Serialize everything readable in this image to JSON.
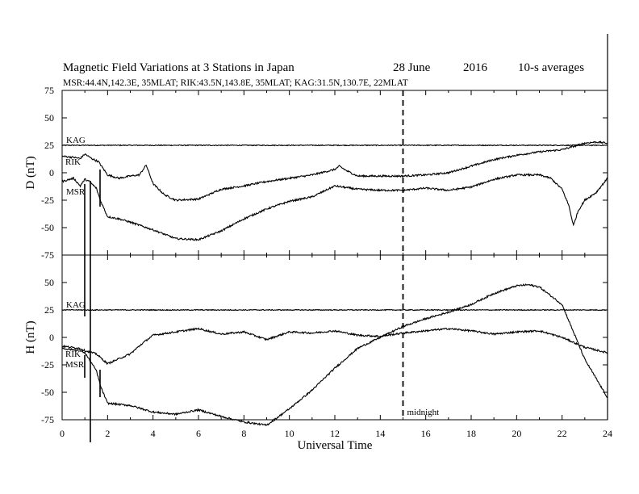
{
  "chart_data": {
    "type": "line",
    "title": {
      "main": "Magnetic Field Variations at 3 Stations in Japan",
      "date": "28 June",
      "year": "2016",
      "avg": "10-s averages"
    },
    "subtitle": "MSR:44.4N,142.3E, 35MLAT;  RIK:43.5N,143.8E, 35MLAT;  KAG:31.5N,130.7E, 22MLAT",
    "xlabel": "Universal Time",
    "xlim": [
      0,
      24
    ],
    "xticks": [
      0,
      2,
      4,
      6,
      8,
      10,
      12,
      14,
      16,
      18,
      20,
      22,
      24
    ],
    "midnight": {
      "x": 15,
      "label": "midnight"
    },
    "panels": [
      {
        "ylabel": "D (nT)",
        "ylim": [
          -75,
          75
        ],
        "yticks": [
          75,
          50,
          25,
          0,
          -25,
          -50,
          -75
        ],
        "series": [
          {
            "name": "KAG",
            "x": [
              0,
              6,
              12,
              18,
              24
            ],
            "values": [
              25,
              25,
              25,
              25,
              25
            ]
          },
          {
            "name": "RIK",
            "x": [
              0,
              0.5,
              0.8,
              1.0,
              1.3,
              1.6,
              2.0,
              2.5,
              3.0,
              3.4,
              3.6,
              3.7,
              4.0,
              4.5,
              5.0,
              6.0,
              7.0,
              8.0,
              9.0,
              10.0,
              11.0,
              12.0,
              12.2,
              12.5,
              13.0,
              14.0,
              15.0,
              16.0,
              17.0,
              18.0,
              19.0,
              20.0,
              21.0,
              22.0,
              23.0,
              23.5,
              24.0
            ],
            "values": [
              15,
              14,
              13,
              17,
              13,
              10,
              -2,
              -5,
              -3,
              -2,
              4,
              7,
              -10,
              -20,
              -25,
              -24,
              -15,
              -12,
              -8,
              -5,
              -2,
              3,
              6,
              2,
              -3,
              -3,
              -3,
              -2,
              0,
              6,
              12,
              16,
              19,
              21,
              27,
              28,
              27
            ]
          },
          {
            "name": "MSR",
            "x": [
              0,
              0.5,
              0.8,
              1.0,
              1.2,
              1.5,
              1.7,
              2.0,
              2.5,
              3.0,
              4.0,
              5.0,
              6.0,
              7.0,
              8.0,
              9.0,
              10.0,
              11.0,
              12.0,
              13.0,
              14.0,
              15.0,
              16.0,
              17.0,
              18.0,
              19.0,
              20.0,
              21.0,
              21.5,
              22.0,
              22.3,
              22.5,
              22.7,
              23.0,
              23.5,
              24.0
            ],
            "values": [
              -8,
              -5,
              -12,
              -6,
              -8,
              -14,
              -26,
              -40,
              -42,
              -45,
              -52,
              -60,
              -61,
              -53,
              -42,
              -33,
              -26,
              -22,
              -12,
              -15,
              -16,
              -16,
              -14,
              -16,
              -13,
              -6,
              -2,
              -2,
              -5,
              -15,
              -30,
              -48,
              -35,
              -25,
              -18,
              -5
            ]
          }
        ]
      },
      {
        "ylabel": "H (nT)",
        "ylim": [
          -75,
          75
        ],
        "yticks": [
          50,
          25,
          0,
          -25,
          -50,
          -75
        ],
        "series": [
          {
            "name": "KAG",
            "x": [
              0,
              6,
              12,
              18,
              24
            ],
            "values": [
              25,
              25,
              25,
              25,
              25
            ]
          },
          {
            "name": "RIK",
            "x": [
              0,
              0.8,
              1.0,
              1.5,
              2.0,
              3.0,
              3.5,
              4.0,
              5.0,
              6.0,
              7.0,
              8.0,
              9.0,
              10.0,
              11.0,
              12.0,
              13.0,
              14.0,
              15.0,
              16.0,
              17.0,
              18.0,
              19.0,
              20.0,
              21.0,
              22.0,
              23.0,
              24.0
            ],
            "values": [
              -8,
              -10,
              -12,
              -15,
              -24,
              -15,
              -6,
              2,
              5,
              8,
              3,
              5,
              -2,
              5,
              4,
              6,
              2,
              1,
              4,
              6,
              8,
              6,
              3,
              5,
              6,
              0,
              -9,
              -14
            ]
          },
          {
            "name": "MSR",
            "x": [
              0,
              0.8,
              1.0,
              1.5,
              1.7,
              2.0,
              3.0,
              4.0,
              5.0,
              6.0,
              7.0,
              8.0,
              9.0,
              10.0,
              11.0,
              12.0,
              13.0,
              14.0,
              15.0,
              16.0,
              17.0,
              18.0,
              19.0,
              20.0,
              20.5,
              21.0,
              22.0,
              23.0,
              24.0
            ],
            "values": [
              -10,
              -12,
              -14,
              -30,
              -45,
              -60,
              -62,
              -68,
              -70,
              -66,
              -72,
              -77,
              -80,
              -65,
              -48,
              -28,
              -10,
              0,
              10,
              17,
              23,
              30,
              40,
              47,
              48,
              46,
              30,
              -20,
              -55
            ]
          }
        ]
      }
    ]
  }
}
